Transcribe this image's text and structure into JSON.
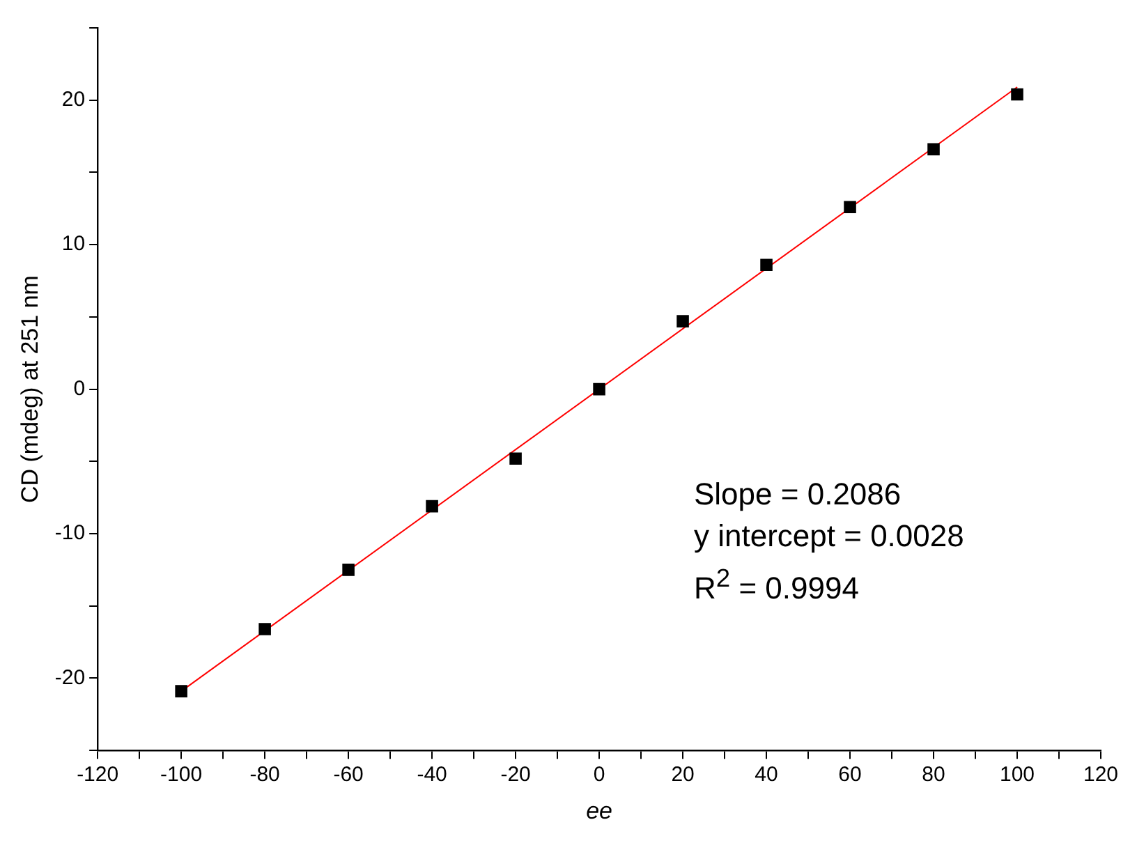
{
  "chart_data": {
    "type": "scatter",
    "xlabel": "ee",
    "ylabel": "CD (mdeg) at 251 nm",
    "x": [
      -100,
      -80,
      -60,
      -40,
      -20,
      0,
      20,
      40,
      60,
      80,
      100
    ],
    "series": [
      {
        "color": "#000000",
        "values": [
          -20.9,
          -16.6,
          -12.5,
          -8.1,
          -4.8,
          0,
          4.7,
          8.6,
          12.6,
          16.6,
          20.4
        ]
      },
      {
        "type": "line",
        "color": "#ff0000",
        "marker": "none",
        "x": [
          -100,
          100
        ],
        "values": [
          -20.9,
          20.9
        ]
      }
    ],
    "xlim": [
      -120,
      120
    ],
    "xticks": [
      -120,
      {
        "value": -110,
        "label": null
      },
      -100,
      {
        "value": -90,
        "label": null
      },
      -80,
      {
        "value": -70,
        "label": null
      },
      -60,
      {
        "value": -50,
        "label": null
      },
      -40,
      {
        "value": -30,
        "label": null
      },
      -20,
      {
        "value": -10,
        "label": null
      },
      0,
      {
        "value": 10,
        "label": null
      },
      20,
      {
        "value": 30,
        "label": null
      },
      40,
      {
        "value": 50,
        "label": null
      },
      60,
      {
        "value": 70,
        "label": null
      },
      80,
      {
        "value": 90,
        "label": null
      },
      100,
      {
        "value": 110,
        "label": null
      },
      120
    ],
    "ylim": [
      -25,
      25
    ],
    "yticks": [
      {
        "value": -25,
        "label": null
      },
      -20,
      {
        "value": -15,
        "label": null
      },
      -10,
      {
        "value": -5,
        "label": null
      },
      0,
      {
        "value": 5,
        "label": null
      },
      10,
      {
        "value": 15,
        "label": null
      },
      20,
      {
        "value": 25,
        "label": null
      }
    ],
    "annotations": [
      "Slope = 0.2086",
      "y intercept = 0.0028",
      "R$^{2}$ = 0.9994"
    ],
    "marker": "square",
    "grid": false,
    "legend": false
  }
}
